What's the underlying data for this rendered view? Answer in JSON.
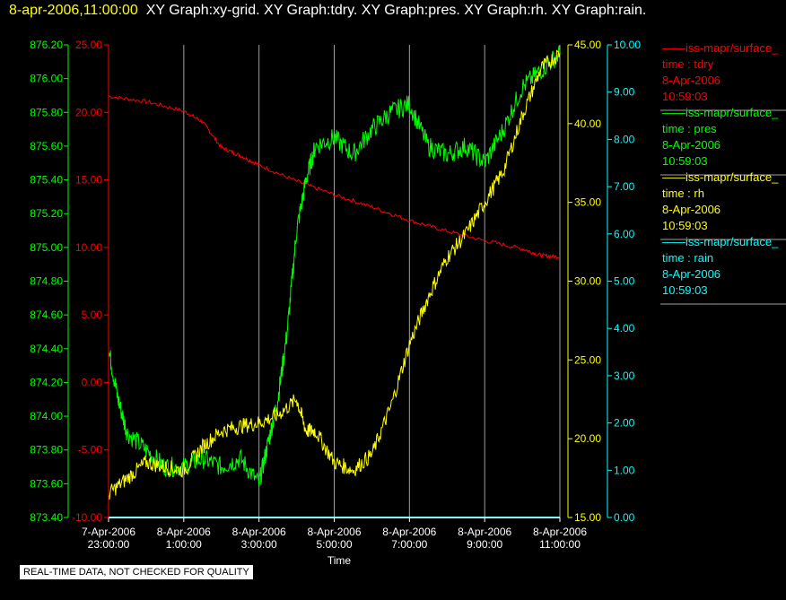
{
  "header": {
    "timestamp": "8-apr-2006,11:00:00",
    "graphs": "XY Graph:xy-grid.  XY Graph:tdry.  XY Graph:pres.  XY Graph:rh.  XY Graph:rain."
  },
  "footer": {
    "disclaimer": "REAL-TIME DATA, NOT CHECKED FOR QUALITY"
  },
  "colors": {
    "tdry": "#ff0000",
    "pres": "#00ff00",
    "rh": "#ffff00",
    "rain": "#00ffff",
    "grid": "#a0a0a0"
  },
  "chart_data": {
    "type": "line",
    "xlabel": "Time",
    "x_ticks": [
      {
        "date": "7-Apr-2006",
        "time": "23:00:00"
      },
      {
        "date": "8-Apr-2006",
        "time": "1:00:00"
      },
      {
        "date": "8-Apr-2006",
        "time": "3:00:00"
      },
      {
        "date": "8-Apr-2006",
        "time": "5:00:00"
      },
      {
        "date": "8-Apr-2006",
        "time": "7:00:00"
      },
      {
        "date": "8-Apr-2006",
        "time": "9:00:00"
      },
      {
        "date": "8-Apr-2006",
        "time": "11:00:00"
      }
    ],
    "axes": {
      "pres": {
        "min": 873.4,
        "max": 876.2,
        "ticks": [
          "873.40",
          "873.60",
          "873.80",
          "874.00",
          "874.20",
          "874.40",
          "874.60",
          "874.80",
          "875.00",
          "875.20",
          "875.40",
          "875.60",
          "875.80",
          "876.00",
          "876.20"
        ]
      },
      "tdry": {
        "min": -10,
        "max": 25,
        "ticks": [
          "-10.00",
          "-5.00",
          "0.00",
          "5.00",
          "10.00",
          "15.00",
          "20.00",
          "25.00"
        ]
      },
      "rh": {
        "min": 15,
        "max": 45,
        "ticks": [
          "15.00",
          "20.00",
          "25.00",
          "30.00",
          "35.00",
          "40.00",
          "45.00"
        ]
      },
      "rain": {
        "min": 0,
        "max": 10,
        "ticks": [
          "0.00",
          "1.00",
          "2.00",
          "3.00",
          "4.00",
          "5.00",
          "6.00",
          "7.00",
          "8.00",
          "9.00",
          "10.00"
        ]
      }
    },
    "legend": [
      {
        "name": "——iss-mapr/surface_",
        "field": "time : tdry",
        "date": "8-Apr-2006",
        "time": "10:59:03"
      },
      {
        "name": "——iss-mapr/surface_",
        "field": "time : pres",
        "date": "8-Apr-2006",
        "time": "10:59:03"
      },
      {
        "name": "——iss-mapr/surface_",
        "field": "time : rh",
        "date": "8-Apr-2006",
        "time": "10:59:03"
      },
      {
        "name": "——iss-mapr/surface_",
        "field": "time : rain",
        "date": "8-Apr-2006",
        "time": "10:59:03"
      }
    ],
    "series": [
      {
        "key": "tdry",
        "x": [
          "7-Apr-2006 23:00",
          "8-Apr-2006 00:00",
          "8-Apr-2006 01:00",
          "8-Apr-2006 01:30",
          "8-Apr-2006 02:00",
          "8-Apr-2006 02:30",
          "8-Apr-2006 03:00",
          "8-Apr-2006 04:00",
          "8-Apr-2006 05:00",
          "8-Apr-2006 06:00",
          "8-Apr-2006 07:00",
          "8-Apr-2006 08:00",
          "8-Apr-2006 09:00",
          "8-Apr-2006 10:00",
          "8-Apr-2006 10:30",
          "8-Apr-2006 11:00"
        ],
        "values": [
          21.2,
          20.8,
          20.1,
          19.3,
          17.4,
          16.8,
          16.1,
          14.9,
          13.9,
          13.0,
          12.0,
          11.2,
          10.5,
          9.9,
          9.4,
          9.3
        ]
      },
      {
        "key": "pres",
        "x": [
          "7-Apr-2006 23:00",
          "7-Apr-2006 23:15",
          "7-Apr-2006 23:30",
          "8-Apr-2006 00:00",
          "8-Apr-2006 00:30",
          "8-Apr-2006 01:00",
          "8-Apr-2006 01:30",
          "8-Apr-2006 02:00",
          "8-Apr-2006 02:30",
          "8-Apr-2006 03:00",
          "8-Apr-2006 03:15",
          "8-Apr-2006 03:30",
          "8-Apr-2006 03:45",
          "8-Apr-2006 04:00",
          "8-Apr-2006 04:15",
          "8-Apr-2006 04:30",
          "8-Apr-2006 05:00",
          "8-Apr-2006 05:30",
          "8-Apr-2006 06:00",
          "8-Apr-2006 06:30",
          "8-Apr-2006 07:00",
          "8-Apr-2006 07:30",
          "8-Apr-2006 08:00",
          "8-Apr-2006 08:30",
          "8-Apr-2006 09:00",
          "8-Apr-2006 09:30",
          "8-Apr-2006 10:00",
          "8-Apr-2006 10:30",
          "8-Apr-2006 11:00"
        ],
        "values": [
          874.4,
          874.1,
          873.9,
          873.8,
          873.7,
          873.7,
          873.75,
          873.7,
          873.75,
          873.6,
          873.85,
          874.1,
          874.5,
          875.1,
          875.4,
          875.6,
          875.65,
          875.55,
          875.7,
          875.8,
          875.85,
          875.6,
          875.55,
          875.6,
          875.5,
          875.7,
          875.95,
          876.05,
          876.15
        ]
      },
      {
        "key": "rh",
        "x": [
          "7-Apr-2006 23:00",
          "7-Apr-2006 23:30",
          "8-Apr-2006 00:00",
          "8-Apr-2006 00:30",
          "8-Apr-2006 01:00",
          "8-Apr-2006 01:30",
          "8-Apr-2006 02:00",
          "8-Apr-2006 02:30",
          "8-Apr-2006 03:00",
          "8-Apr-2006 03:30",
          "8-Apr-2006 04:00",
          "8-Apr-2006 04:15",
          "8-Apr-2006 04:30",
          "8-Apr-2006 05:00",
          "8-Apr-2006 05:30",
          "8-Apr-2006 06:00",
          "8-Apr-2006 06:30",
          "8-Apr-2006 07:00",
          "8-Apr-2006 07:30",
          "8-Apr-2006 08:00",
          "8-Apr-2006 08:30",
          "8-Apr-2006 09:00",
          "8-Apr-2006 09:30",
          "8-Apr-2006 10:00",
          "8-Apr-2006 10:30",
          "8-Apr-2006 11:00"
        ],
        "values": [
          16.5,
          17.5,
          18.5,
          18.2,
          18.0,
          19.5,
          20.5,
          20.8,
          21.0,
          21.5,
          22.5,
          20.5,
          20.5,
          18.5,
          18.0,
          19.0,
          22.0,
          26.0,
          29.0,
          31.5,
          33.0,
          35.0,
          37.0,
          40.5,
          43.5,
          44.5
        ]
      },
      {
        "key": "rain",
        "x": [
          "7-Apr-2006 23:00",
          "8-Apr-2006 11:00"
        ],
        "values": [
          0.0,
          0.0
        ]
      }
    ]
  }
}
